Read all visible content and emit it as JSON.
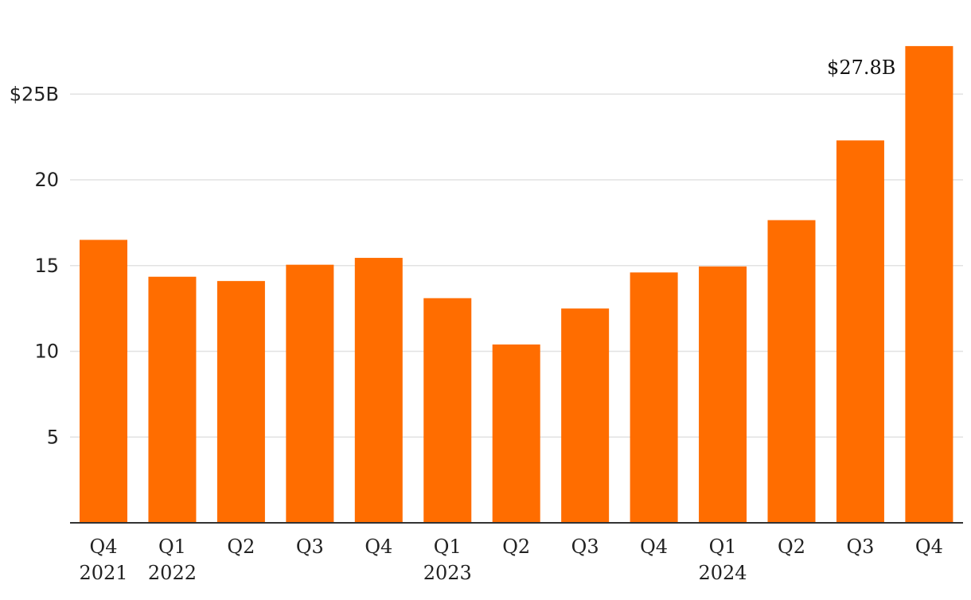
{
  "chart_data": {
    "type": "bar",
    "title": "",
    "xlabel": "",
    "ylabel": "",
    "categories": [
      {
        "quarter": "Q4",
        "year": "2021"
      },
      {
        "quarter": "Q1",
        "year": "2022"
      },
      {
        "quarter": "Q2",
        "year": ""
      },
      {
        "quarter": "Q3",
        "year": ""
      },
      {
        "quarter": "Q4",
        "year": ""
      },
      {
        "quarter": "Q1",
        "year": "2023"
      },
      {
        "quarter": "Q2",
        "year": ""
      },
      {
        "quarter": "Q3",
        "year": ""
      },
      {
        "quarter": "Q4",
        "year": ""
      },
      {
        "quarter": "Q1",
        "year": "2024"
      },
      {
        "quarter": "Q2",
        "year": ""
      },
      {
        "quarter": "Q3",
        "year": ""
      },
      {
        "quarter": "Q4",
        "year": ""
      }
    ],
    "values": [
      16.5,
      14.35,
      14.1,
      15.05,
      15.45,
      13.1,
      10.4,
      12.5,
      14.6,
      14.95,
      17.65,
      22.3,
      27.8
    ],
    "ylim": [
      0,
      28
    ],
    "yticks": [
      {
        "value": 5,
        "label": "5"
      },
      {
        "value": 10,
        "label": "10"
      },
      {
        "value": 15,
        "label": "15"
      },
      {
        "value": 20,
        "label": "20"
      },
      {
        "value": 25,
        "label": "$25B"
      }
    ],
    "data_labels": [
      {
        "index": 12,
        "text": "$27.8B"
      }
    ],
    "grid": true,
    "bar_color": "#ff6d00"
  }
}
